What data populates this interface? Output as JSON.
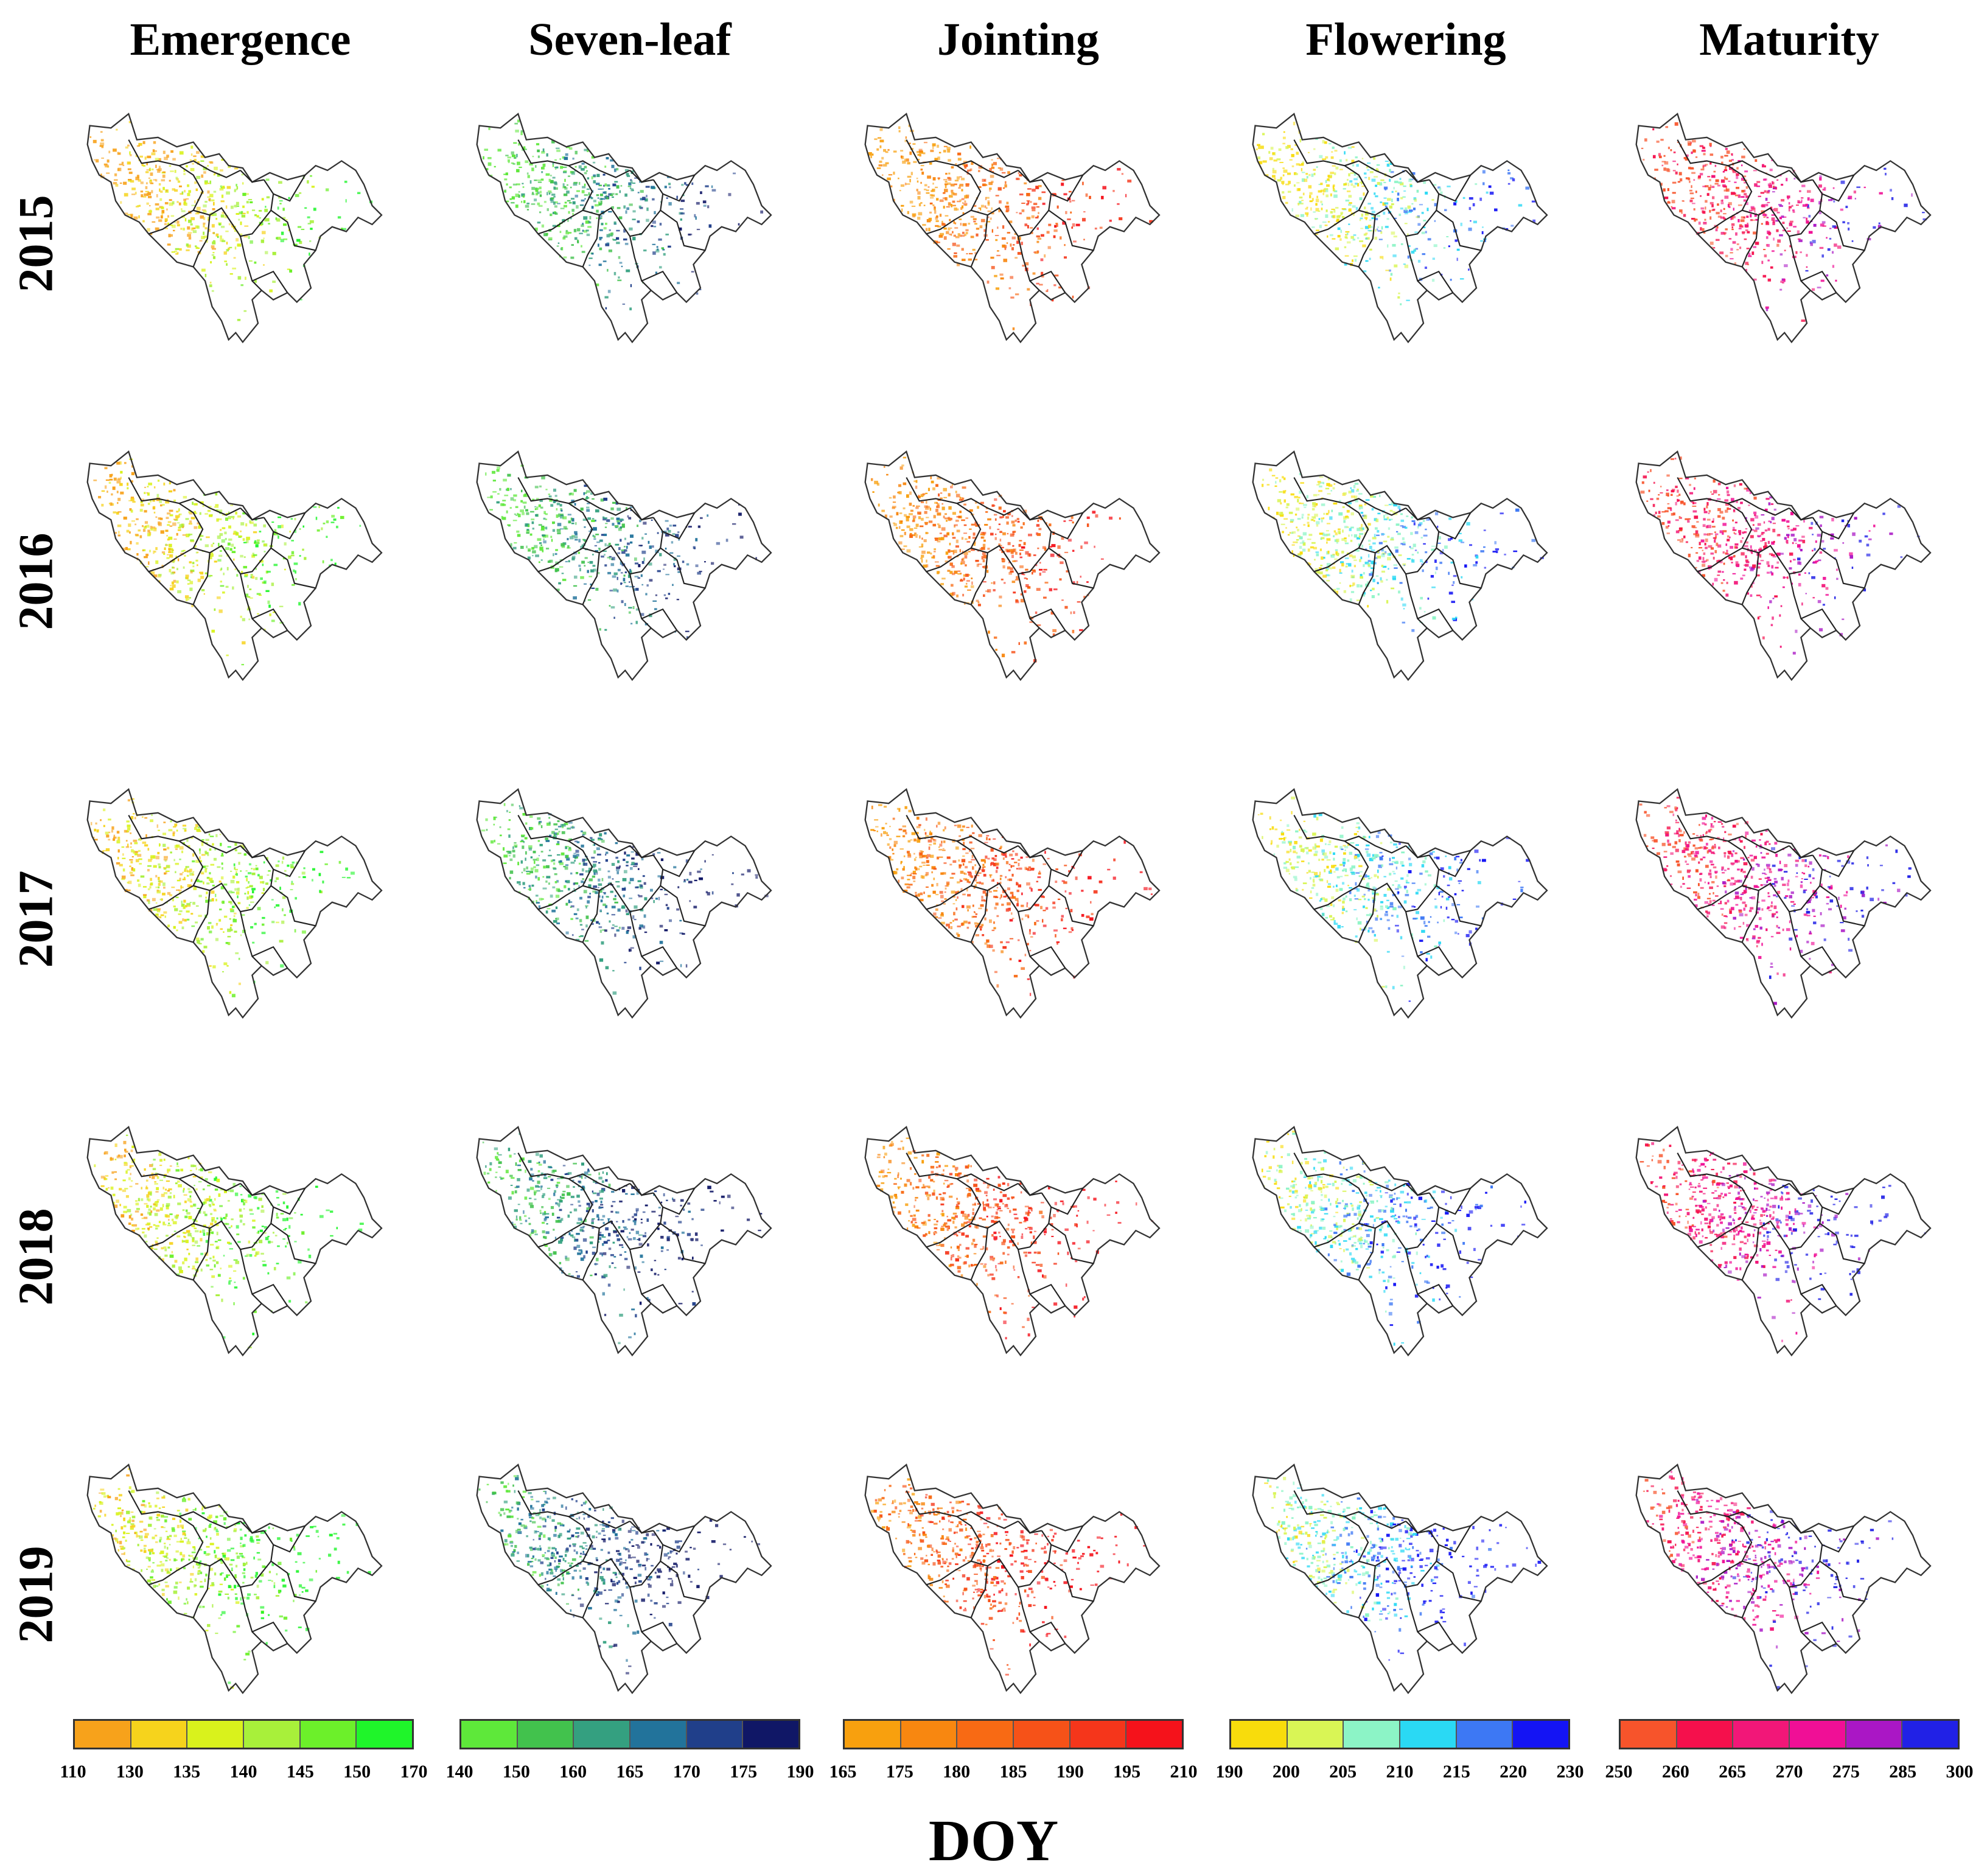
{
  "figure": {
    "stages": [
      {
        "name": "Emergence",
        "colors": [
          "#f7a21b",
          "#f6d31c",
          "#d9f21c",
          "#a8f03a",
          "#6cf02a",
          "#1ff52a"
        ],
        "ticks": [
          "110",
          "130",
          "135",
          "140",
          "145",
          "150",
          "170"
        ]
      },
      {
        "name": "Seven-leaf",
        "colors": [
          "#5ee83a",
          "#42c24d",
          "#34a080",
          "#22739b",
          "#203f8a",
          "#101766"
        ],
        "ticks": [
          "140",
          "150",
          "160",
          "165",
          "170",
          "175",
          "190"
        ]
      },
      {
        "name": "Jointing",
        "colors": [
          "#f8a00e",
          "#f88710",
          "#f86a14",
          "#f65218",
          "#f5361b",
          "#f5121b"
        ],
        "ticks": [
          "165",
          "175",
          "180",
          "185",
          "190",
          "195",
          "210"
        ]
      },
      {
        "name": "Flowering",
        "colors": [
          "#f8dc0c",
          "#d9f555",
          "#8cf4c6",
          "#2ad9f4",
          "#3d78f4",
          "#1414f4"
        ],
        "ticks": [
          "190",
          "200",
          "205",
          "210",
          "215",
          "220",
          "230"
        ]
      },
      {
        "name": "Maturity",
        "colors": [
          "#f7542b",
          "#f5104c",
          "#f21778",
          "#f00f96",
          "#aa17c5",
          "#2121e6"
        ],
        "ticks": [
          "250",
          "260",
          "265",
          "270",
          "275",
          "285",
          "300"
        ]
      }
    ],
    "years": [
      "2015",
      "2016",
      "2017",
      "2018",
      "2019"
    ],
    "x_axis_label": "DOY"
  }
}
